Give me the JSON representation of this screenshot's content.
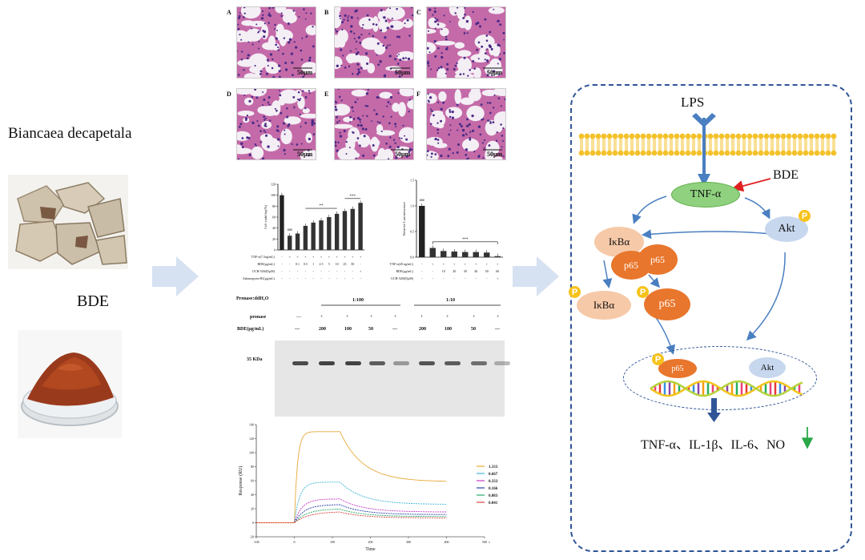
{
  "left": {
    "plant_name": "Biancaea decapetala",
    "abbrev": "BDE"
  },
  "histology": {
    "panels": [
      {
        "letter": "A",
        "scale": "50μm"
      },
      {
        "letter": "B",
        "scale": "50μm"
      },
      {
        "letter": "C",
        "scale": "50μm"
      },
      {
        "letter": "D",
        "scale": "50μm"
      },
      {
        "letter": "E",
        "scale": "50μm"
      },
      {
        "letter": "F",
        "scale": "50μm"
      }
    ]
  },
  "bar_charts": [
    {
      "ylabel": "Cell viability(%)",
      "yticks": [
        "0",
        "20",
        "40",
        "60",
        "80",
        "100",
        "120"
      ],
      "values": [
        100,
        26,
        30,
        44,
        50,
        54,
        60,
        66,
        71,
        75,
        86
      ],
      "sig_top": [
        "###",
        "**",
        "***"
      ],
      "rows": [
        {
          "label": "TNF-α(7.5ng/mL)",
          "cells": [
            "-",
            "+",
            "+",
            "+",
            "+",
            "+",
            "+",
            "+",
            "+",
            "+",
            "+"
          ]
        },
        {
          "label": "BDE(μg/mL)",
          "cells": [
            "-",
            "-",
            "0.1",
            "0.5",
            "1",
            "2.5",
            "5",
            "10",
            "25",
            "50",
            "-"
          ]
        },
        {
          "label": "UCB-5260(5μM)",
          "cells": [
            "-",
            "-",
            "-",
            "-",
            "-",
            "-",
            "-",
            "-",
            "-",
            "-",
            "+"
          ]
        },
        {
          "label": "Ashanopyrin-B1(μg/mL)",
          "cells": [
            "-",
            "-",
            "-",
            "-",
            "-",
            "-",
            "-",
            "-",
            "-",
            "-",
            "-"
          ]
        }
      ]
    },
    {
      "ylabel": "Relative Luminescence",
      "yticks": [
        "0.0",
        "0.5",
        "1.0",
        "1.5"
      ],
      "values": [
        1.0,
        0.18,
        0.12,
        0.11,
        0.1,
        0.1,
        0.09,
        0.02
      ],
      "sig_top": [
        "###",
        "***"
      ],
      "rows": [
        {
          "label": "TNF-α(20 ng/mL)",
          "cells": [
            "-",
            "+",
            "+",
            "+",
            "+",
            "+",
            "+",
            "+"
          ]
        },
        {
          "label": "BDE(μg/mL)",
          "cells": [
            "-",
            "-",
            "10",
            "20",
            "30",
            "40",
            "50",
            "60"
          ]
        },
        {
          "label": "UCB-5260(5μM)",
          "cells": [
            "-",
            "-",
            "-",
            "-",
            "-",
            "-",
            "-",
            "+"
          ]
        }
      ]
    }
  ],
  "darts": {
    "title": "Pronase:ddH₂O",
    "ratio1": "1:100",
    "ratio2": "1:10",
    "pronase_label": "pronase",
    "bde_label": "BDE(μg/mL)",
    "pronase_row": [
      "—",
      "+",
      "+",
      "+",
      "+",
      "+",
      "+",
      "+",
      "+"
    ],
    "bde_row": [
      "—",
      "200",
      "100",
      "50",
      "—",
      "200",
      "100",
      "50",
      "—"
    ],
    "marker": "35 KDa"
  },
  "spr": {
    "ylabel": "Response (RU)",
    "xlabel": "Time",
    "xunit": "s",
    "xticks": [
      "-100",
      "0",
      "100",
      "200",
      "300",
      "400",
      "500"
    ],
    "yticks": [
      "-20",
      "0",
      "20",
      "40",
      "60",
      "80",
      "100",
      "120",
      "140"
    ],
    "legend": [
      {
        "label": "1.333",
        "color": "#e6a83a"
      },
      {
        "label": "0.667",
        "color": "#3fb6d9"
      },
      {
        "label": "0.333",
        "color": "#c43bc4"
      },
      {
        "label": "0.166",
        "color": "#2a3fa8"
      },
      {
        "label": "0.083",
        "color": "#2aa86a"
      },
      {
        "label": "0.041",
        "color": "#d9463f"
      }
    ]
  },
  "pathway": {
    "lps": "LPS",
    "tnf": "TNF-α",
    "bde": "BDE",
    "akt": "Akt",
    "ikba": "IκBα",
    "p65": "p65",
    "phospho": "P",
    "output": "TNF-α、IL-1β、IL-6、NO"
  },
  "colors": {
    "arrow_blue": "#4a7fc1",
    "dashed_border": "#2f5597",
    "tnf_green": "#8fd17e",
    "p65_orange": "#e8762c",
    "ikba_peach": "#f6c9a8",
    "akt_blue": "#c7d7ee",
    "inhibit_red": "#e02020",
    "down_green": "#2aa84a",
    "big_arrow": "#d6e1f2"
  }
}
